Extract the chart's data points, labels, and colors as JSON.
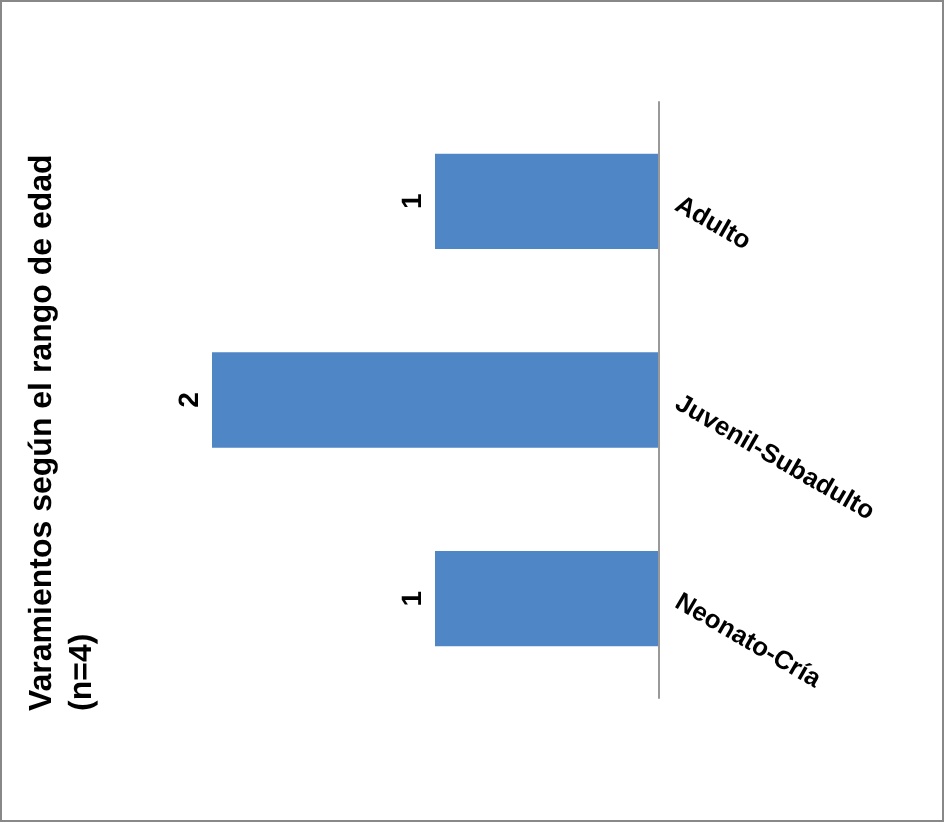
{
  "chart_data": {
    "type": "bar",
    "orientation": "horizontal",
    "title": "Varamientos según el rango de edad (n=4)",
    "categories": [
      "Adulto",
      "Juvenil-Subadulto",
      "Neonato-Cría"
    ],
    "values": [
      1,
      2,
      1
    ],
    "color": "#4f86c6",
    "data_labels": true
  }
}
